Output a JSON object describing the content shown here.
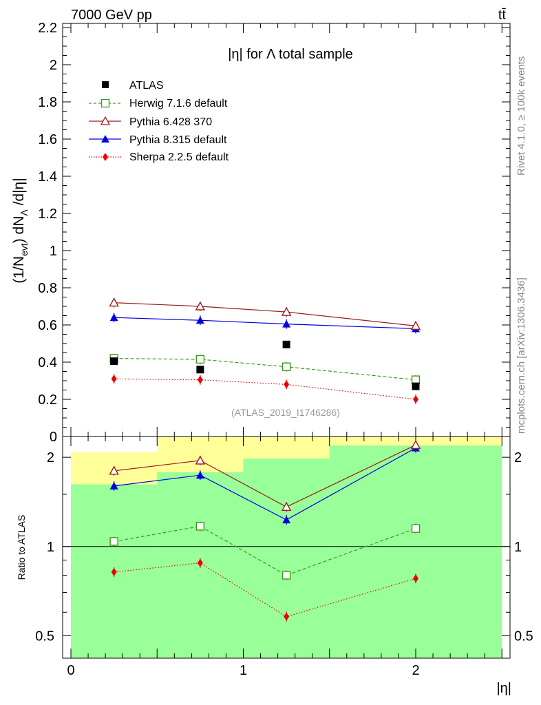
{
  "header": {
    "energy_label": "7000 GeV pp",
    "process_label": "tt̄",
    "plot_title": "|η| for Λ total sample",
    "analysis_tag": "(ATLAS_2019_I1746286)",
    "side_label_1": "Rivet 4.1.0, ≥ 100k events",
    "side_label_2": "mcplots.cern.ch [arXiv:1306.3436]"
  },
  "colors": {
    "atlas": "#000000",
    "herwig": "#3a9a1a",
    "pythia6": "#9b1c1c",
    "pythia8": "#0000e0",
    "sherpa": "#ee0000",
    "band_yellow": "#ffff99",
    "band_green": "#99ff99"
  },
  "chart_data": [
    {
      "type": "scatter",
      "panel": "main",
      "ylabel_parts": {
        "a": "(1/N",
        "b": "evt",
        "c": ") dN",
        "d": "Λ",
        "e": " /d|η|"
      },
      "xlim": [
        -0.05,
        2.55
      ],
      "ylim": [
        0,
        2.2
      ],
      "yticks": [
        {
          "v": 0,
          "label": "0"
        },
        {
          "v": 0.2,
          "label": "0.2"
        },
        {
          "v": 0.4,
          "label": "0.4"
        },
        {
          "v": 0.6,
          "label": "0.6"
        },
        {
          "v": 0.8,
          "label": "0.8"
        },
        {
          "v": 1.0,
          "label": "1"
        },
        {
          "v": 1.2,
          "label": "1.2"
        },
        {
          "v": 1.4,
          "label": "1.4"
        },
        {
          "v": 1.6,
          "label": "1.6"
        },
        {
          "v": 1.8,
          "label": "1.8"
        },
        {
          "v": 2.0,
          "label": "2"
        },
        {
          "v": 2.2,
          "label": "2.2"
        }
      ],
      "x": [
        0.25,
        0.75,
        1.25,
        2.0
      ],
      "series": [
        {
          "id": "atlas",
          "name": "ATLAS",
          "marker": "square-filled",
          "line": "none",
          "values": [
            0.405,
            0.36,
            0.495,
            0.27
          ]
        },
        {
          "id": "herwig",
          "name": "Herwig 7.1.6 default",
          "marker": "square-open",
          "line": "dashed",
          "values": [
            0.42,
            0.415,
            0.375,
            0.305
          ]
        },
        {
          "id": "pythia6",
          "name": "Pythia 6.428 370",
          "marker": "triangle-open",
          "line": "solid",
          "values": [
            0.72,
            0.7,
            0.67,
            0.595
          ]
        },
        {
          "id": "pythia8",
          "name": "Pythia 8.315 default",
          "marker": "triangle-filled",
          "line": "solid",
          "values": [
            0.64,
            0.625,
            0.605,
            0.58
          ]
        },
        {
          "id": "sherpa",
          "name": "Sherpa 2.2.5 default",
          "marker": "diamond-filled",
          "line": "dotted",
          "values": [
            0.31,
            0.305,
            0.28,
            0.2
          ]
        }
      ]
    },
    {
      "type": "scatter",
      "panel": "ratio",
      "ylabel": "Ratio to ATLAS",
      "xlabel": "|η|",
      "scale": "log",
      "ylim": [
        0.42,
        2.35
      ],
      "reference": 1.0,
      "yticks": [
        {
          "v": 0.5,
          "label": "0.5"
        },
        {
          "v": 1.0,
          "label": "1"
        },
        {
          "v": 2.0,
          "label": "2"
        }
      ],
      "xticks": [
        {
          "v": 0,
          "label": "0"
        },
        {
          "v": 1,
          "label": "1"
        },
        {
          "v": 2,
          "label": "2"
        }
      ],
      "bins": [
        {
          "lo": 0.0,
          "hi": 0.5,
          "yellow": [
            0.38,
            2.08
          ],
          "green": [
            0.4,
            1.62
          ]
        },
        {
          "lo": 0.5,
          "hi": 1.0,
          "yellow": [
            0.3,
            2.4
          ],
          "green": [
            0.3,
            1.78
          ]
        },
        {
          "lo": 1.0,
          "hi": 1.5,
          "yellow": [
            0.3,
            2.4
          ],
          "green": [
            0.3,
            1.98
          ]
        },
        {
          "lo": 1.5,
          "hi": 2.5,
          "yellow": [
            0.3,
            2.4
          ],
          "green": [
            0.3,
            2.19
          ]
        }
      ],
      "x": [
        0.25,
        0.75,
        1.25,
        2.0
      ],
      "series": [
        {
          "id": "herwig",
          "values": [
            1.04,
            1.17,
            0.8,
            1.15
          ]
        },
        {
          "id": "pythia6",
          "values": [
            1.8,
            1.95,
            1.36,
            2.2
          ]
        },
        {
          "id": "pythia8",
          "values": [
            1.6,
            1.74,
            1.23,
            2.15
          ]
        },
        {
          "id": "sherpa",
          "values": [
            0.82,
            0.88,
            0.58,
            0.78
          ]
        }
      ]
    }
  ]
}
